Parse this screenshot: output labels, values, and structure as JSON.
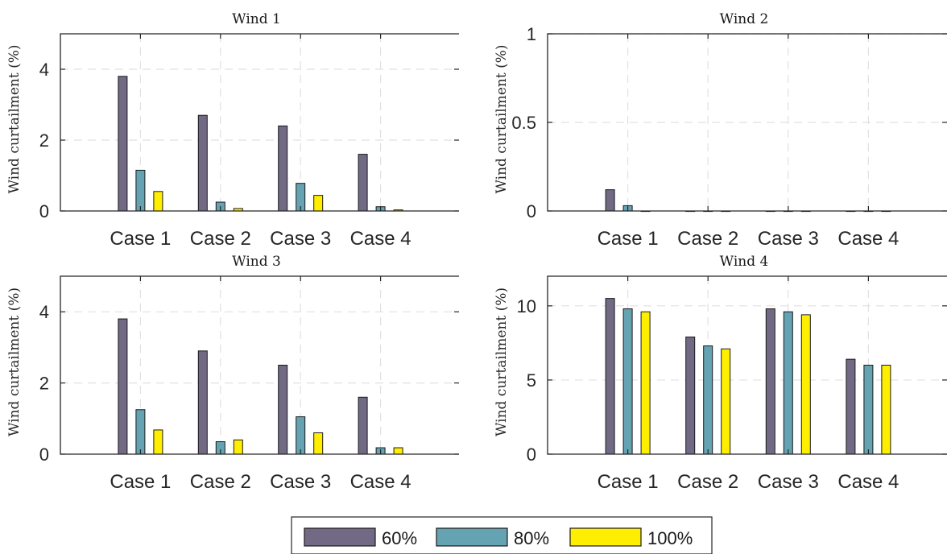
{
  "colors": {
    "series": [
      "#726a85",
      "#65a3b3",
      "#ffee00"
    ],
    "grid": "#e1e1e1",
    "axis": "#262626"
  },
  "legend": {
    "position": "bottom-center",
    "entries": [
      "60%",
      "80%",
      "100%"
    ]
  },
  "chart_data": [
    {
      "type": "bar",
      "title": "Wind 1",
      "ylabel": "Wind curtailment (%)",
      "categories": [
        "Case 1",
        "Case 2",
        "Case 3",
        "Case 4"
      ],
      "ylim": [
        0,
        5
      ],
      "yticks": [
        0,
        2,
        4
      ],
      "grid": true,
      "series": [
        {
          "name": "60%",
          "values": [
            3.8,
            2.7,
            2.4,
            1.6
          ]
        },
        {
          "name": "80%",
          "values": [
            1.15,
            0.25,
            0.78,
            0.12
          ]
        },
        {
          "name": "100%",
          "values": [
            0.55,
            0.07,
            0.44,
            0.03
          ]
        }
      ]
    },
    {
      "type": "bar",
      "title": "Wind 2",
      "ylabel": "Wind curtailment (%)",
      "categories": [
        "Case 1",
        "Case 2",
        "Case 3",
        "Case 4"
      ],
      "ylim": [
        0,
        1
      ],
      "yticks": [
        "0",
        "0.5",
        "1"
      ],
      "grid": true,
      "series": [
        {
          "name": "60%",
          "values": [
            0.12,
            0,
            0,
            0
          ]
        },
        {
          "name": "80%",
          "values": [
            0.03,
            0,
            0,
            0
          ]
        },
        {
          "name": "100%",
          "values": [
            0,
            0,
            0,
            0
          ]
        }
      ]
    },
    {
      "type": "bar",
      "title": "Wind 3",
      "ylabel": "Wind curtailment (%)",
      "categories": [
        "Case 1",
        "Case 2",
        "Case 3",
        "Case 4"
      ],
      "ylim": [
        0,
        5
      ],
      "yticks": [
        0,
        2,
        4
      ],
      "grid": true,
      "series": [
        {
          "name": "60%",
          "values": [
            3.8,
            2.9,
            2.5,
            1.6
          ]
        },
        {
          "name": "80%",
          "values": [
            1.25,
            0.35,
            1.05,
            0.18
          ]
        },
        {
          "name": "100%",
          "values": [
            0.68,
            0.4,
            0.6,
            0.18
          ]
        }
      ]
    },
    {
      "type": "bar",
      "title": "Wind 4",
      "ylabel": "Wind curtailment (%)",
      "categories": [
        "Case 1",
        "Case 2",
        "Case 3",
        "Case 4"
      ],
      "ylim": [
        0,
        12
      ],
      "yticks": [
        0,
        5,
        10
      ],
      "grid": true,
      "series": [
        {
          "name": "60%",
          "values": [
            10.5,
            7.9,
            9.8,
            6.4
          ]
        },
        {
          "name": "80%",
          "values": [
            9.8,
            7.3,
            9.6,
            6.0
          ]
        },
        {
          "name": "100%",
          "values": [
            9.6,
            7.1,
            9.4,
            6.0
          ]
        }
      ]
    }
  ]
}
